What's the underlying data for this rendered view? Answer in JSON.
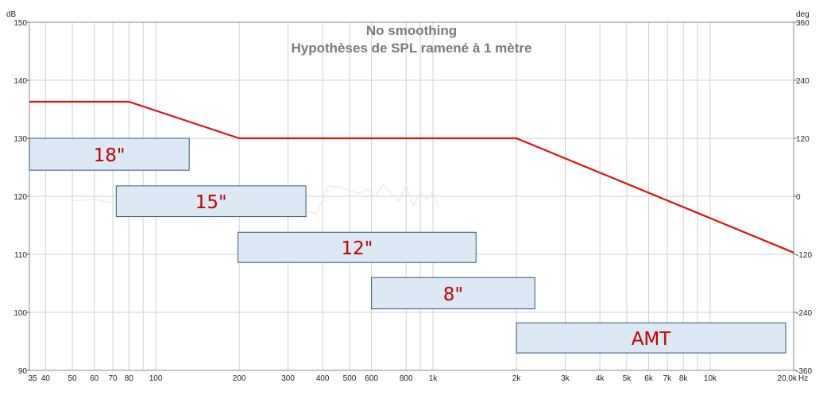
{
  "chart_data": {
    "type": "line",
    "title": "No smoothing",
    "subtitle": "Hypothèses de SPL ramené à 1 mètre",
    "xscale": "log",
    "xlim": [
      35,
      20000
    ],
    "ylim": [
      90,
      150
    ],
    "y2lim": [
      -360,
      360
    ],
    "left_unit": "dB",
    "right_unit": "deg",
    "x_unit": "Hz",
    "grid": true,
    "x_ticks": [
      {
        "v": 35,
        "label": "35"
      },
      {
        "v": 40,
        "label": "40"
      },
      {
        "v": 50,
        "label": "50"
      },
      {
        "v": 60,
        "label": "60"
      },
      {
        "v": 70,
        "label": "70"
      },
      {
        "v": 80,
        "label": "80"
      },
      {
        "v": 100,
        "label": "100"
      },
      {
        "v": 200,
        "label": "200"
      },
      {
        "v": 300,
        "label": "300"
      },
      {
        "v": 400,
        "label": "400"
      },
      {
        "v": 500,
        "label": "500"
      },
      {
        "v": 600,
        "label": "600"
      },
      {
        "v": 800,
        "label": "800"
      },
      {
        "v": 1000,
        "label": "1k"
      },
      {
        "v": 2000,
        "label": "2k"
      },
      {
        "v": 3000,
        "label": "3k"
      },
      {
        "v": 4000,
        "label": "4k"
      },
      {
        "v": 5000,
        "label": "5k"
      },
      {
        "v": 6000,
        "label": "6k"
      },
      {
        "v": 7000,
        "label": "7k"
      },
      {
        "v": 8000,
        "label": "8k"
      },
      {
        "v": 10000,
        "label": "10k"
      },
      {
        "v": 20000,
        "label": "20,0k"
      }
    ],
    "x_minor": [
      90,
      900,
      9000
    ],
    "y_ticks": [
      {
        "v": 150,
        "label": "150"
      },
      {
        "v": 140,
        "label": "140"
      },
      {
        "v": 130,
        "label": "130"
      },
      {
        "v": 120,
        "label": "120"
      },
      {
        "v": 110,
        "label": "110"
      },
      {
        "v": 100,
        "label": "100"
      },
      {
        "v": 90,
        "label": "90"
      }
    ],
    "y2_ticks": [
      {
        "v": 360,
        "label": "360"
      },
      {
        "v": 240,
        "label": "240"
      },
      {
        "v": 120,
        "label": "120"
      },
      {
        "v": 0,
        "label": "0"
      },
      {
        "v": -120,
        "label": "-120"
      },
      {
        "v": -240,
        "label": "-240"
      },
      {
        "v": -360,
        "label": "-360"
      }
    ],
    "series": [
      {
        "color": "#e01010",
        "x": [
          35,
          80,
          200,
          2000,
          20000
        ],
        "y": [
          136.3,
          136.3,
          130,
          130,
          110.3
        ]
      }
    ],
    "phase_trace": {
      "color": "#e8e8e8",
      "x": [
        50,
        60,
        70,
        80,
        90,
        100,
        120,
        140,
        160,
        180,
        200,
        230,
        260,
        300,
        340,
        380,
        420,
        460,
        500,
        540,
        580,
        620,
        660,
        700,
        750,
        800,
        850,
        900,
        950,
        1000,
        1050
      ],
      "y": [
        119.2,
        119.5,
        118.8,
        119.4,
        120.0,
        119.6,
        119.9,
        120.3,
        119.7,
        120.2,
        119.5,
        120.1,
        120.4,
        119.0,
        117.6,
        117.0,
        121.8,
        121.6,
        121.0,
        120.5,
        121.2,
        120.0,
        122.0,
        120.7,
        119.2,
        121.8,
        118.4,
        120.9,
        119.5,
        120.8,
        118.0
      ]
    },
    "ranges": [
      {
        "label": "18\"",
        "x0": 35,
        "x1": 132,
        "y0": 124.5,
        "y1": 130.0,
        "fill": "#dce8f4",
        "stroke": "#2f5878"
      },
      {
        "label": "15\"",
        "x0": 72,
        "x1": 348,
        "y0": 116.5,
        "y1": 121.8,
        "fill": "#dce8f4",
        "stroke": "#2f5878"
      },
      {
        "label": "12\"",
        "x0": 198,
        "x1": 1430,
        "y0": 108.6,
        "y1": 113.8,
        "fill": "#dce8f4",
        "stroke": "#2f5878"
      },
      {
        "label": "8\"",
        "x0": 600,
        "x1": 2330,
        "y0": 100.6,
        "y1": 106.0,
        "fill": "#dce8f4",
        "stroke": "#2f5878"
      },
      {
        "label": "AMT",
        "x0": 2000,
        "x1": 19000,
        "y0": 93.0,
        "y1": 98.2,
        "fill": "#dce8f4",
        "stroke": "#2f5878"
      }
    ]
  }
}
